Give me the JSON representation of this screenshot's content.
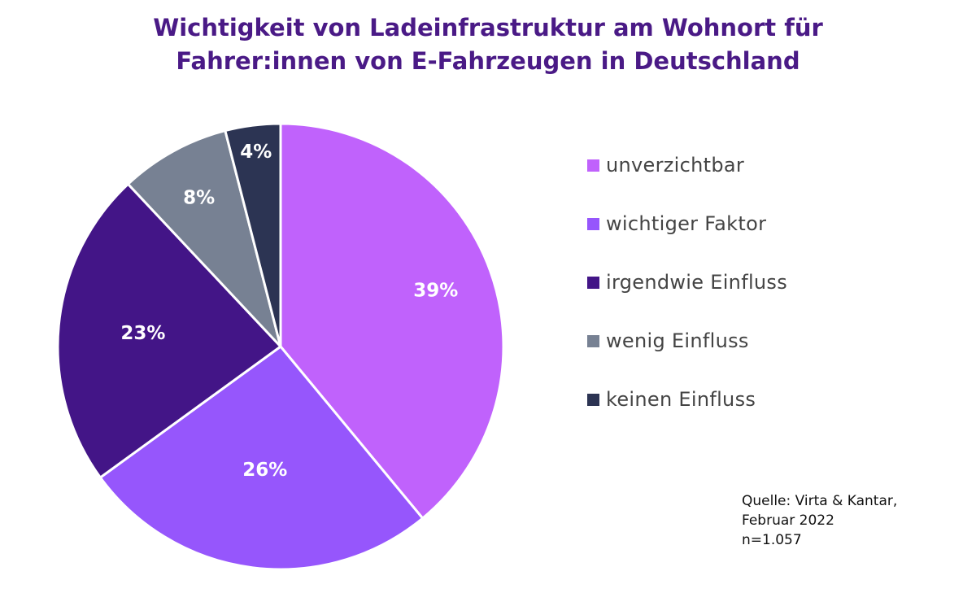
{
  "chart_data": {
    "type": "pie",
    "title_lines": [
      "Wichtigkeit von Ladeinfrastruktur am Wohnort für",
      "Fahrer:innen von E-Fahrzeugen in Deutschland"
    ],
    "categories": [
      "unverzichtbar",
      "wichtiger Faktor",
      "irgendwie Einfluss",
      "wenig Einfluss",
      "keinen Einfluss"
    ],
    "values": [
      39,
      26,
      23,
      8,
      4
    ],
    "value_labels": [
      "39%",
      "26%",
      "23%",
      "8%",
      "4%"
    ],
    "colors": [
      "#c062fc",
      "#9656fc",
      "#431587",
      "#778193",
      "#2c3453"
    ],
    "legend_position": "right",
    "source_lines": [
      "Quelle: Virta & Kantar,",
      "Februar 2022",
      "n=1.057"
    ]
  }
}
